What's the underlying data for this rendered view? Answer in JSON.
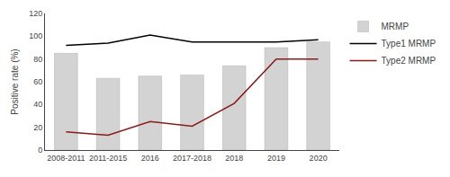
{
  "chart_data": {
    "type": "bar",
    "ylabel": "Positive rate (%)",
    "categories": [
      "2008-2011",
      "2011-2015",
      "2016",
      "2017-2018",
      "2018",
      "2019",
      "2020"
    ],
    "series": [
      {
        "name": "MRMP",
        "type": "bar",
        "color": "#d3d3d3",
        "values": [
          85,
          63,
          65,
          66,
          74,
          90,
          95
        ]
      },
      {
        "name": "Type1 MRMP",
        "type": "line",
        "color": "#000000",
        "values": [
          92,
          94,
          101,
          95,
          95,
          95,
          97
        ]
      },
      {
        "name": "Type2 MRMP",
        "type": "line",
        "color": "#8b1a1a",
        "values": [
          16,
          13,
          25,
          21,
          41,
          80,
          80
        ]
      }
    ],
    "ylim": [
      0,
      120
    ],
    "yticks": [
      0,
      20,
      40,
      60,
      80,
      100,
      120
    ],
    "grid": false,
    "legend": "right"
  }
}
